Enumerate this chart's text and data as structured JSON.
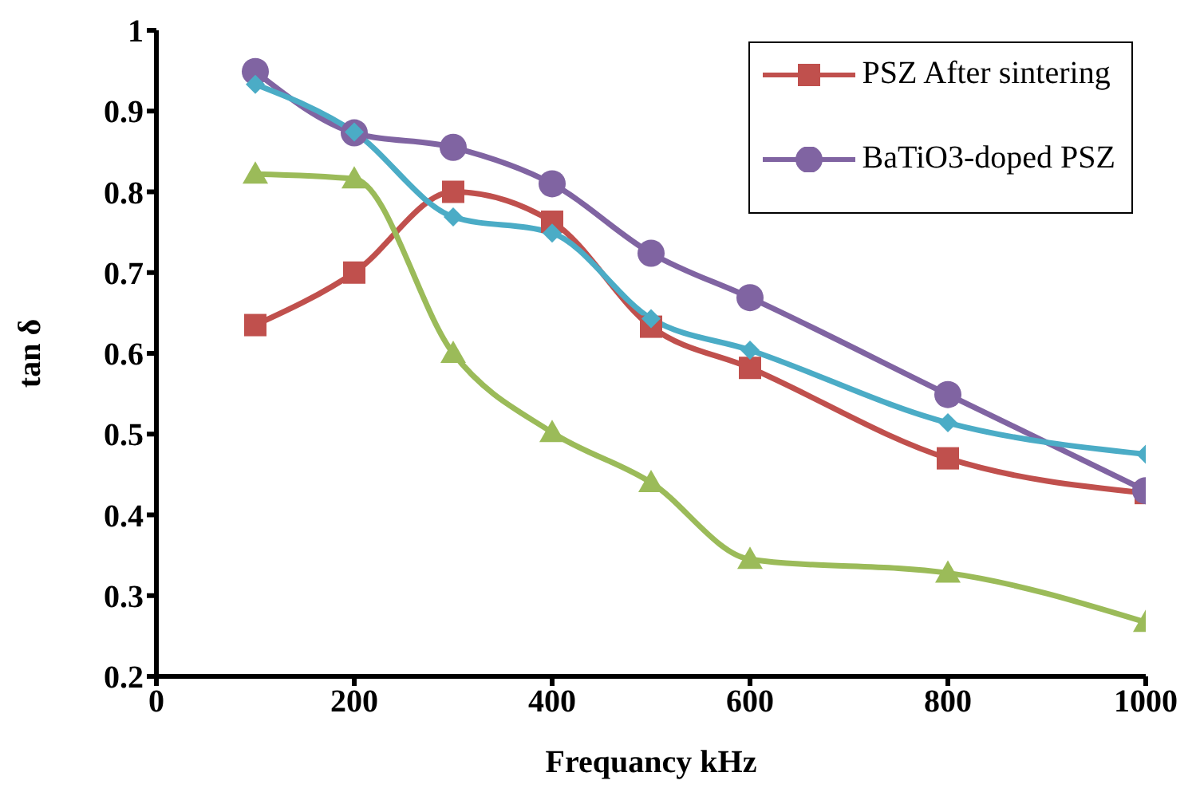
{
  "chart_data": {
    "type": "line",
    "xlabel": "Frequancy kHz",
    "ylabel": "tan δ",
    "x": [
      100,
      200,
      300,
      400,
      500,
      600,
      800,
      1000
    ],
    "xlim": [
      0,
      1000
    ],
    "xticks": [
      0,
      200,
      400,
      600,
      800,
      1000
    ],
    "ylim": [
      0.2,
      1
    ],
    "yticks": [
      0.2,
      0.3,
      0.4,
      0.5,
      0.6,
      0.7,
      0.8,
      0.9,
      1
    ],
    "legend": "top right",
    "series": [
      {
        "name": "PSZ After sintering",
        "color": "#c0504d",
        "marker": "square",
        "values": [
          0.635,
          0.7,
          0.8,
          0.763,
          0.633,
          0.582,
          0.47,
          0.427
        ]
      },
      {
        "name": "BaTiO3-doped PSZ",
        "color": "#8064a2",
        "marker": "circle",
        "values": [
          0.949,
          0.873,
          0.855,
          0.81,
          0.724,
          0.669,
          0.549,
          0.43
        ]
      },
      {
        "color": "#4bacc6",
        "marker": "diamond",
        "values": [
          0.933,
          0.874,
          0.769,
          0.749,
          0.643,
          0.604,
          0.514,
          0.475
        ]
      },
      {
        "color": "#9bbb59",
        "marker": "triangle",
        "values": [
          0.822,
          0.816,
          0.6,
          0.502,
          0.44,
          0.345,
          0.328,
          0.267
        ]
      }
    ]
  }
}
